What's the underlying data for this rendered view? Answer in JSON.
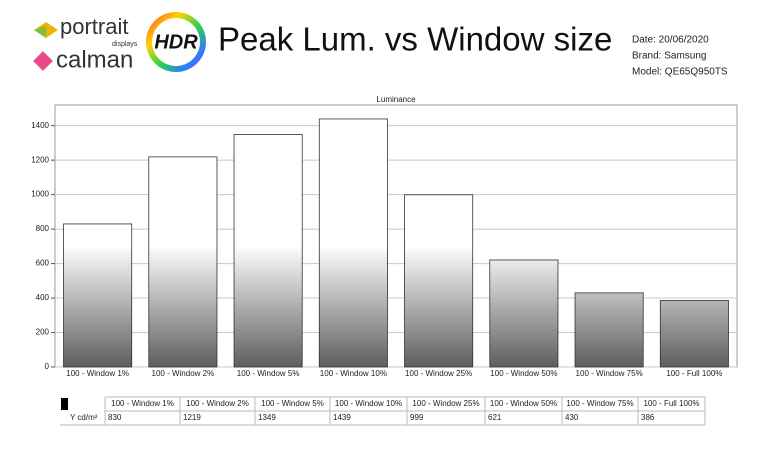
{
  "header": {
    "brand1": "portrait",
    "brand1_sub": "displays",
    "brand2": "calman",
    "badge": "HDR",
    "title": "Peak Lum. vs Window size",
    "date": "Date: 20/06/2020",
    "brand": "Brand: Samsung",
    "model": "Model: QE65Q950TS"
  },
  "chart_data": {
    "type": "bar",
    "subtitle": "Luminance",
    "categories": [
      "100 - Window  1%",
      "100 - Window  2%",
      "100 - Window  5%",
      "100 - Window 10%",
      "100 - Window 25%",
      "100 - Window 50%",
      "100 - Window 75%",
      "100 - Full  100%"
    ],
    "values": [
      830,
      1219,
      1349,
      1439,
      999,
      621,
      430,
      386
    ],
    "ylim": [
      0,
      1520
    ],
    "yticks": [
      0,
      200,
      400,
      600,
      800,
      1000,
      1200,
      1400
    ],
    "grid": true,
    "row_label": "Y cd/m²"
  }
}
